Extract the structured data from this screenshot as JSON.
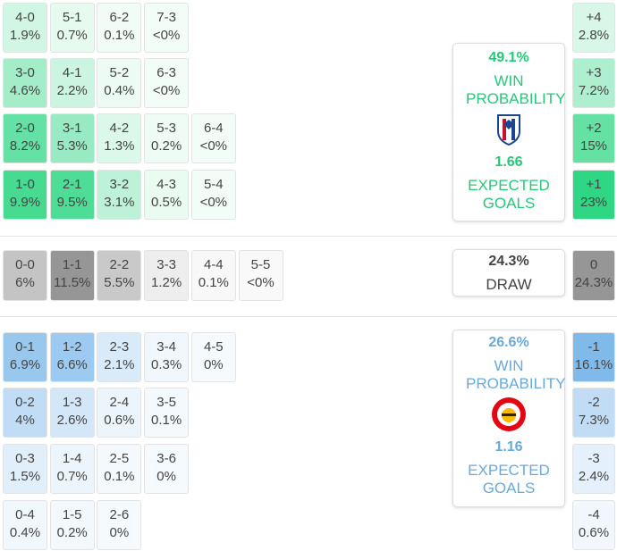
{
  "home": {
    "win_probability": "49.1%",
    "win_label": "WIN PROBABILITY",
    "expected_goals": "1.66",
    "xg_label": "EXPECTED GOALS",
    "rows": [
      [
        {
          "score": "4-0",
          "prob": "1.9%"
        },
        {
          "score": "5-1",
          "prob": "0.7%"
        },
        {
          "score": "6-2",
          "prob": "0.1%"
        },
        {
          "score": "7-3",
          "prob": "<0%"
        }
      ],
      [
        {
          "score": "3-0",
          "prob": "4.6%"
        },
        {
          "score": "4-1",
          "prob": "2.2%"
        },
        {
          "score": "5-2",
          "prob": "0.4%"
        },
        {
          "score": "6-3",
          "prob": "<0%"
        }
      ],
      [
        {
          "score": "2-0",
          "prob": "8.2%"
        },
        {
          "score": "3-1",
          "prob": "5.3%"
        },
        {
          "score": "4-2",
          "prob": "1.3%"
        },
        {
          "score": "5-3",
          "prob": "0.2%"
        },
        {
          "score": "6-4",
          "prob": "<0%"
        }
      ],
      [
        {
          "score": "1-0",
          "prob": "9.9%"
        },
        {
          "score": "2-1",
          "prob": "9.5%"
        },
        {
          "score": "3-2",
          "prob": "3.1%"
        },
        {
          "score": "4-3",
          "prob": "0.5%"
        },
        {
          "score": "5-4",
          "prob": "<0%"
        }
      ]
    ],
    "margins": [
      {
        "diff": "+4",
        "prob": "2.8%"
      },
      {
        "diff": "+3",
        "prob": "7.2%"
      },
      {
        "diff": "+2",
        "prob": "15%"
      },
      {
        "diff": "+1",
        "prob": "23%"
      }
    ]
  },
  "draw": {
    "probability": "24.3%",
    "label": "DRAW",
    "rows": [
      [
        {
          "score": "0-0",
          "prob": "6%"
        },
        {
          "score": "1-1",
          "prob": "11.5%"
        },
        {
          "score": "2-2",
          "prob": "5.5%"
        },
        {
          "score": "3-3",
          "prob": "1.2%"
        },
        {
          "score": "4-4",
          "prob": "0.1%"
        },
        {
          "score": "5-5",
          "prob": "<0%"
        }
      ]
    ],
    "margins": [
      {
        "diff": "0",
        "prob": "24.3%"
      }
    ]
  },
  "away": {
    "win_probability": "26.6%",
    "win_label": "WIN PROBABILITY",
    "expected_goals": "1.16",
    "xg_label": "EXPECTED GOALS",
    "rows": [
      [
        {
          "score": "0-1",
          "prob": "6.9%"
        },
        {
          "score": "1-2",
          "prob": "6.6%"
        },
        {
          "score": "2-3",
          "prob": "2.1%"
        },
        {
          "score": "3-4",
          "prob": "0.3%"
        },
        {
          "score": "4-5",
          "prob": "0%"
        }
      ],
      [
        {
          "score": "0-2",
          "prob": "4%"
        },
        {
          "score": "1-3",
          "prob": "2.6%"
        },
        {
          "score": "2-4",
          "prob": "0.6%"
        },
        {
          "score": "3-5",
          "prob": "0.1%"
        }
      ],
      [
        {
          "score": "0-3",
          "prob": "1.5%"
        },
        {
          "score": "1-4",
          "prob": "0.7%"
        },
        {
          "score": "2-5",
          "prob": "0.1%"
        },
        {
          "score": "3-6",
          "prob": "0%"
        }
      ],
      [
        {
          "score": "0-4",
          "prob": "0.4%"
        },
        {
          "score": "1-5",
          "prob": "0.2%"
        },
        {
          "score": "2-6",
          "prob": "0%"
        }
      ]
    ],
    "margins": [
      {
        "diff": "-1",
        "prob": "16.1%"
      },
      {
        "diff": "-2",
        "prob": "7.3%"
      },
      {
        "diff": "-3",
        "prob": "2.4%"
      },
      {
        "diff": "-4",
        "prob": "0.6%"
      }
    ]
  }
}
